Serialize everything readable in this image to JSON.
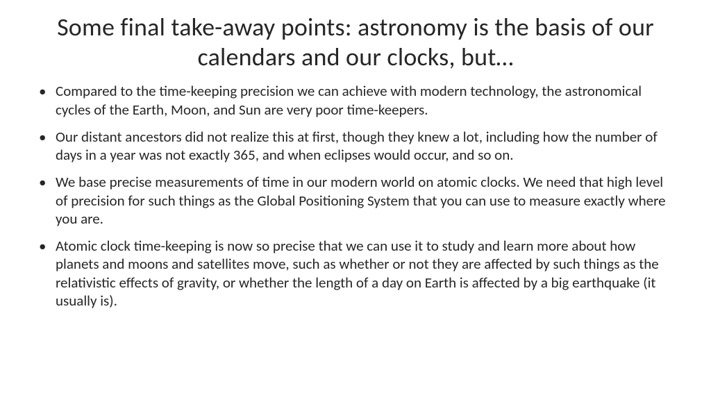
{
  "slide": {
    "title": "Some final take-away points: astronomy is the basis of our calendars and our clocks, but…",
    "title_fontsize": 36,
    "title_color": "#262626",
    "title_align": "center",
    "background_color": "#ffffff",
    "body_fontsize": 21,
    "body_color": "#262626",
    "bullet_char": "•",
    "bullets": [
      "Compared to the time-keeping precision we can achieve with modern technology, the astronomical cycles of the Earth, Moon, and Sun are very poor time-keepers.",
      "Our distant ancestors did not realize this at first, though they knew a lot, including how the number of days in a year was not exactly 365, and when eclipses would occur, and so on.",
      "We base precise measurements of time in our modern world on atomic clocks. We need that high level of precision for such things as the Global Positioning System that you can use to measure exactly where you are.",
      "Atomic clock time-keeping is now so precise that we can use it to study and learn more about how planets and moons and satellites move, such as whether or not they are affected by such things as the relativistic effects of gravity, or whether the length of a day on Earth is affected by a big earthquake (it usually is)."
    ]
  }
}
